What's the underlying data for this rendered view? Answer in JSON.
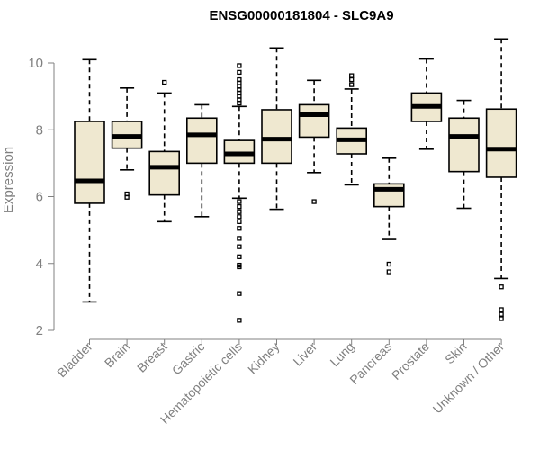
{
  "chart_data": {
    "type": "boxplot",
    "title": "ENSG00000181804 - SLC9A9",
    "ylabel": "Expression",
    "xlabel": "",
    "ylim": [
      2,
      11
    ],
    "yticks": [
      2,
      4,
      6,
      8,
      10
    ],
    "categories": [
      "Bladder",
      "Brain",
      "Breast",
      "Gastric",
      "Hematopoietic cells",
      "Kidney",
      "Liver",
      "Lung",
      "Pancreas",
      "Prostate",
      "Skin",
      "Unknown / Other"
    ],
    "boxes": [
      {
        "name": "Bladder",
        "whisker_low": 2.85,
        "q1": 5.8,
        "median": 6.47,
        "q3": 8.25,
        "whisker_high": 10.1,
        "outliers": []
      },
      {
        "name": "Brain",
        "whisker_low": 6.8,
        "q1": 7.45,
        "median": 7.8,
        "q3": 8.25,
        "whisker_high": 9.25,
        "outliers": [
          5.98,
          6.08
        ]
      },
      {
        "name": "Breast",
        "whisker_low": 5.25,
        "q1": 6.05,
        "median": 6.88,
        "q3": 7.35,
        "whisker_high": 9.1,
        "outliers": [
          9.42
        ]
      },
      {
        "name": "Gastric",
        "whisker_low": 5.4,
        "q1": 7.0,
        "median": 7.85,
        "q3": 8.35,
        "whisker_high": 8.75,
        "outliers": []
      },
      {
        "name": "Hematopoietic cells",
        "whisker_low": 5.95,
        "q1": 7.0,
        "median": 7.28,
        "q3": 7.68,
        "whisker_high": 8.7,
        "outliers": [
          9.92,
          9.72,
          9.5,
          9.4,
          9.3,
          9.2,
          9.1,
          9.0,
          8.9,
          8.8,
          5.85,
          5.7,
          5.55,
          5.4,
          5.25,
          5.05,
          4.75,
          4.5,
          4.2,
          3.95,
          3.9,
          3.1,
          2.3
        ]
      },
      {
        "name": "Kidney",
        "whisker_low": 5.62,
        "q1": 7.0,
        "median": 7.72,
        "q3": 8.6,
        "whisker_high": 10.45,
        "outliers": []
      },
      {
        "name": "Liver",
        "whisker_low": 6.72,
        "q1": 7.78,
        "median": 8.45,
        "q3": 8.75,
        "whisker_high": 9.48,
        "outliers": [
          5.85
        ]
      },
      {
        "name": "Lung",
        "whisker_low": 6.35,
        "q1": 7.28,
        "median": 7.7,
        "q3": 8.05,
        "whisker_high": 9.22,
        "outliers": [
          9.62,
          9.5,
          9.35
        ]
      },
      {
        "name": "Pancreas",
        "whisker_low": 4.72,
        "q1": 5.7,
        "median": 6.22,
        "q3": 6.38,
        "whisker_high": 7.15,
        "outliers": [
          3.98,
          3.75
        ]
      },
      {
        "name": "Prostate",
        "whisker_low": 7.42,
        "q1": 8.25,
        "median": 8.7,
        "q3": 9.1,
        "whisker_high": 10.12,
        "outliers": []
      },
      {
        "name": "Skin",
        "whisker_low": 5.65,
        "q1": 6.75,
        "median": 7.8,
        "q3": 8.35,
        "whisker_high": 8.88,
        "outliers": []
      },
      {
        "name": "Unknown / Other",
        "whisker_low": 3.55,
        "q1": 6.58,
        "median": 7.42,
        "q3": 8.62,
        "whisker_high": 10.72,
        "outliers": [
          3.3,
          2.62,
          2.48,
          2.35
        ]
      }
    ],
    "colors": {
      "box_fill": "#efe8d0",
      "stroke": "#000000",
      "axis": "#808080"
    },
    "grid": false,
    "legend": "none"
  }
}
